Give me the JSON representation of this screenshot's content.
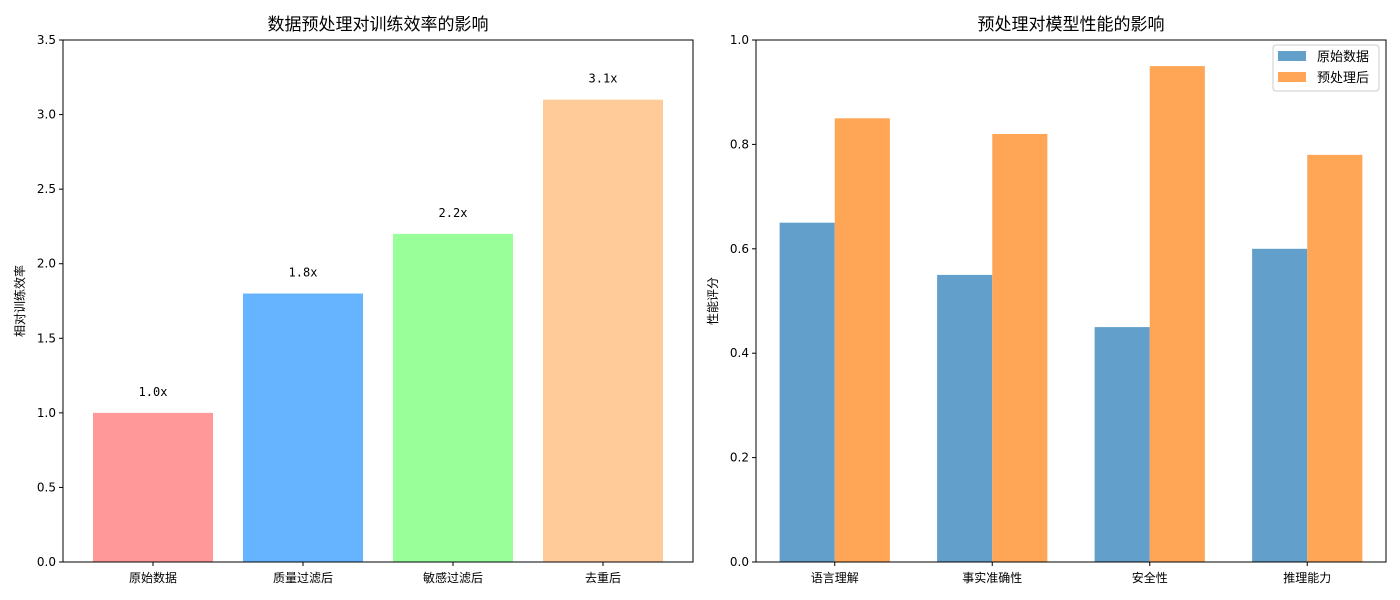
{
  "chart_data": [
    {
      "type": "bar",
      "title": "数据预处理对训练效率的影响",
      "xlabel": "",
      "ylabel": "相对训练效率",
      "categories": [
        "原始数据",
        "质量过滤后",
        "敏感过滤后",
        "去重后"
      ],
      "values": [
        1.0,
        1.8,
        2.2,
        3.1
      ],
      "data_labels": [
        "1.0x",
        "1.8x",
        "2.2x",
        "3.1x"
      ],
      "colors": [
        "#ff9999",
        "#66b3ff",
        "#99ff99",
        "#ffcc99"
      ],
      "ylim": [
        0,
        3.5
      ],
      "yticks": [
        "0.0",
        "0.5",
        "1.0",
        "1.5",
        "2.0",
        "2.5",
        "3.0",
        "3.5"
      ],
      "grid": false
    },
    {
      "type": "bar",
      "title": "预处理对模型性能的影响",
      "xlabel": "",
      "ylabel": "性能评分",
      "categories": [
        "语言理解",
        "事实准确性",
        "安全性",
        "推理能力"
      ],
      "series": [
        {
          "name": "原始数据",
          "values": [
            0.65,
            0.55,
            0.45,
            0.6
          ],
          "color": "#629fca"
        },
        {
          "name": "预处理后",
          "values": [
            0.85,
            0.82,
            0.95,
            0.78
          ],
          "color": "#ffa556"
        }
      ],
      "ylim": [
        0,
        1.0
      ],
      "yticks": [
        "0.0",
        "0.2",
        "0.4",
        "0.6",
        "0.8",
        "1.0"
      ],
      "legend": "top-right",
      "grid": false
    }
  ]
}
